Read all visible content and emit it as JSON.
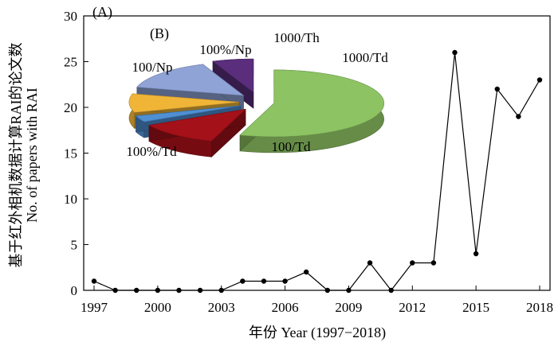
{
  "chart_data": [
    {
      "type": "line",
      "panel_label": "(A)",
      "xlabel": "年份 Year (1997−2018)",
      "ylabel_line1": "基于红外相机数据计算RAI的论文数",
      "ylabel_line2": "No. of papers with RAI",
      "xlim": [
        1997,
        2018
      ],
      "ylim": [
        0,
        30
      ],
      "x_ticks": [
        1997,
        2000,
        2003,
        2006,
        2009,
        2012,
        2015,
        2018
      ],
      "y_ticks": [
        0,
        5,
        10,
        15,
        20,
        25,
        30
      ],
      "x": [
        1997,
        1998,
        1999,
        2000,
        2001,
        2002,
        2003,
        2004,
        2005,
        2006,
        2007,
        2008,
        2009,
        2010,
        2011,
        2012,
        2013,
        2014,
        2015,
        2016,
        2017,
        2018
      ],
      "y": [
        1,
        0,
        0,
        0,
        0,
        0,
        0,
        1,
        1,
        1,
        2,
        0,
        0,
        3,
        0,
        3,
        3,
        26,
        4,
        22,
        19,
        23
      ],
      "line_color": "#000000",
      "grid": false
    },
    {
      "type": "pie",
      "panel_label": "(B)",
      "slices": [
        {
          "label": "100/Td",
          "value": 55,
          "color": "#8DC363"
        },
        {
          "label": "1000/Td",
          "value": 12,
          "color": "#A41119"
        },
        {
          "label": "1000/Th",
          "value": 3,
          "color": "#4F8FD3"
        },
        {
          "label": "100%/Np",
          "value": 9,
          "color": "#F0B537"
        },
        {
          "label": "100/Np",
          "value": 15,
          "color": "#8FA3D7"
        },
        {
          "label": "100%/Td",
          "value": 6,
          "color": "#5A2E7C"
        }
      ]
    }
  ]
}
